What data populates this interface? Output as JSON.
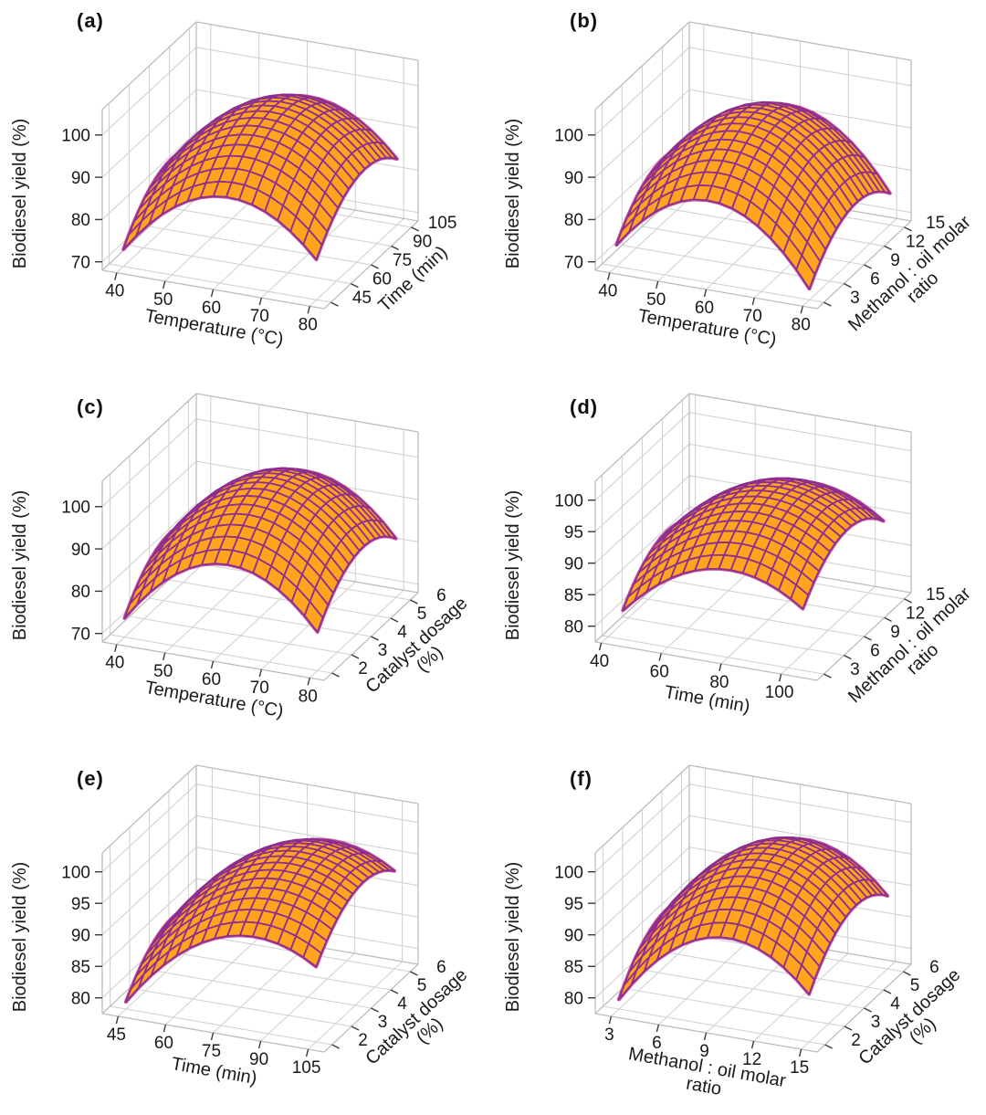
{
  "figure": {
    "background": "#FFFFFF",
    "description": "Six 3D response surface plots of biodiesel yield (%) versus pairs of transesterification process variables"
  },
  "colors": {
    "surface_fill": "#FFA41C",
    "mesh_line": "#8E2F8F",
    "surface_outline": "#C4509E",
    "grid_line": "#D2D2D2",
    "box_edge": "#BDBDBD",
    "tick_mark": "#3A3A3A",
    "text": "#1A1A1A"
  },
  "chart_data": [
    {
      "panel": "a",
      "label": "(a)",
      "type": "3d-surface",
      "x_axis": {
        "label_lines": [
          "Temperature (°C)"
        ],
        "ticks": [
          40,
          50,
          60,
          70,
          80
        ],
        "lim": [
          37,
          83
        ]
      },
      "y_axis": {
        "label_lines": [
          "Time (min)"
        ],
        "ticks": [
          45,
          60,
          75,
          90,
          105
        ],
        "lim": [
          40,
          110
        ]
      },
      "z_axis": {
        "label": "Biodiesel yield (%)",
        "ticks": [
          70,
          80,
          90,
          100
        ],
        "lim": [
          68,
          106
        ]
      },
      "surface": {
        "x_range": [
          40,
          80
        ],
        "y_range": [
          45,
          105
        ],
        "peak_z": 99.5,
        "peak_pos": [
          0.55,
          0.6
        ],
        "curvature": [
          55,
          30
        ],
        "mesh_divisions": 15
      }
    },
    {
      "panel": "b",
      "label": "(b)",
      "type": "3d-surface",
      "x_axis": {
        "label_lines": [
          "Temperature (°C)"
        ],
        "ticks": [
          40,
          50,
          60,
          70,
          80
        ],
        "lim": [
          37,
          83
        ]
      },
      "y_axis": {
        "label_lines": [
          "Methanol : oil molar",
          "ratio"
        ],
        "ticks": [
          3,
          6,
          9,
          12,
          15
        ],
        "lim": [
          2,
          16
        ]
      },
      "z_axis": {
        "label": "Biodiesel yield (%)",
        "ticks": [
          70,
          80,
          90,
          100
        ],
        "lim": [
          68,
          106
        ]
      },
      "surface": {
        "x_range": [
          40,
          80
        ],
        "y_range": [
          3,
          15
        ],
        "peak_z": 97.5,
        "peak_pos": [
          0.48,
          0.58
        ],
        "curvature": [
          62,
          30
        ],
        "mesh_divisions": 15
      }
    },
    {
      "panel": "c",
      "label": "(c)",
      "type": "3d-surface",
      "x_axis": {
        "label_lines": [
          "Temperature (°C)"
        ],
        "ticks": [
          40,
          50,
          60,
          70,
          80
        ],
        "lim": [
          37,
          83
        ]
      },
      "y_axis": {
        "label_lines": [
          "Catalyst dosage",
          "(%)"
        ],
        "ticks": [
          2,
          3,
          4,
          5,
          6
        ],
        "lim": [
          1.6,
          6.4
        ]
      },
      "z_axis": {
        "label": "Biodiesel yield (%)",
        "ticks": [
          70,
          80,
          90,
          100
        ],
        "lim": [
          68,
          106
        ]
      },
      "surface": {
        "x_range": [
          40,
          80
        ],
        "y_range": [
          2,
          6
        ],
        "peak_z": 99.5,
        "peak_pos": [
          0.54,
          0.58
        ],
        "curvature": [
          58,
          30
        ],
        "mesh_divisions": 15
      }
    },
    {
      "panel": "d",
      "label": "(d)",
      "type": "3d-surface",
      "x_axis": {
        "label_lines": [
          "Time (min)"
        ],
        "ticks": [
          40,
          60,
          80,
          100
        ],
        "lim": [
          38,
          112
        ]
      },
      "y_axis": {
        "label_lines": [
          "Methanol : oil molar",
          "ratio"
        ],
        "ticks": [
          3,
          6,
          9,
          12,
          15
        ],
        "lim": [
          2,
          16
        ]
      },
      "z_axis": {
        "label": "Biodiesel yield (%)",
        "ticks": [
          80,
          85,
          90,
          95,
          100
        ],
        "lim": [
          77.5,
          103
        ]
      },
      "surface": {
        "x_range": [
          45,
          105
        ],
        "y_range": [
          3,
          15
        ],
        "peak_z": 97.5,
        "peak_pos": [
          0.6,
          0.55
        ],
        "curvature": [
          26,
          20
        ],
        "mesh_divisions": 15
      }
    },
    {
      "panel": "e",
      "label": "(e)",
      "type": "3d-surface",
      "x_axis": {
        "label_lines": [
          "Time (min)"
        ],
        "ticks": [
          45,
          60,
          75,
          90,
          105
        ],
        "lim": [
          40,
          110
        ]
      },
      "y_axis": {
        "label_lines": [
          "Catalyst dosage",
          "(%)"
        ],
        "ticks": [
          2,
          3,
          4,
          5,
          6
        ],
        "lim": [
          1.6,
          6.4
        ]
      },
      "z_axis": {
        "label": "Biodiesel yield (%)",
        "ticks": [
          80,
          85,
          90,
          95,
          100
        ],
        "lim": [
          77.5,
          103
        ]
      },
      "surface": {
        "x_range": [
          45,
          105
        ],
        "y_range": [
          2,
          6
        ],
        "peak_z": 99,
        "peak_pos": [
          0.68,
          0.6
        ],
        "curvature": [
          30,
          18
        ],
        "mesh_divisions": 15
      }
    },
    {
      "panel": "f",
      "label": "(f)",
      "type": "3d-surface",
      "x_axis": {
        "label_lines": [
          "Methanol : oil molar",
          "ratio"
        ],
        "ticks": [
          3,
          6,
          9,
          12,
          15
        ],
        "lim": [
          2,
          16
        ]
      },
      "y_axis": {
        "label_lines": [
          "Catalyst dosage",
          "(%)"
        ],
        "ticks": [
          2,
          3,
          4,
          5,
          6
        ],
        "lim": [
          1.6,
          6.4
        ]
      },
      "z_axis": {
        "label": "Biodiesel yield (%)",
        "ticks": [
          80,
          85,
          90,
          95,
          100
        ],
        "lim": [
          77.5,
          103
        ]
      },
      "surface": {
        "x_range": [
          3,
          15
        ],
        "y_range": [
          2,
          6
        ],
        "peak_z": 99,
        "peak_pos": [
          0.58,
          0.6
        ],
        "curvature": [
          38,
          20
        ],
        "mesh_divisions": 15
      }
    }
  ]
}
